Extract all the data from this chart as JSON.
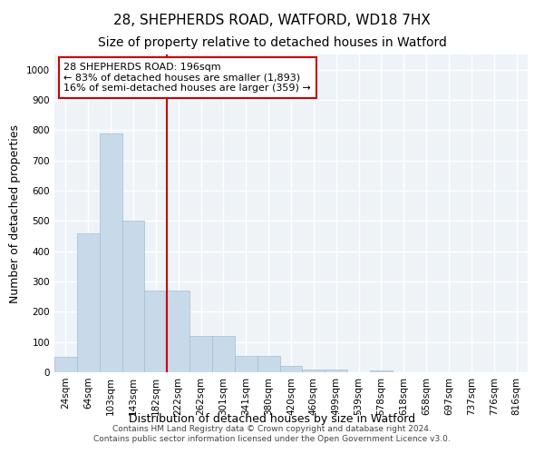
{
  "title": "28, SHEPHERDS ROAD, WATFORD, WD18 7HX",
  "subtitle": "Size of property relative to detached houses in Watford",
  "xlabel": "Distribution of detached houses by size in Watford",
  "ylabel": "Number of detached properties",
  "categories": [
    "24sqm",
    "64sqm",
    "103sqm",
    "143sqm",
    "182sqm",
    "222sqm",
    "262sqm",
    "301sqm",
    "341sqm",
    "380sqm",
    "420sqm",
    "460sqm",
    "499sqm",
    "539sqm",
    "578sqm",
    "618sqm",
    "658sqm",
    "697sqm",
    "737sqm",
    "776sqm",
    "816sqm"
  ],
  "bar_heights": [
    50,
    460,
    790,
    500,
    270,
    270,
    120,
    120,
    55,
    55,
    20,
    10,
    10,
    0,
    5,
    0,
    0,
    0,
    0,
    0,
    0
  ],
  "bar_color": "#c8daea",
  "bar_edge_color": "#a0bfd0",
  "bar_linewidth": 0.5,
  "vline_color": "#cc0000",
  "vline_x": 4.5,
  "annotation_line1": "28 SHEPHERDS ROAD: 196sqm",
  "annotation_line2": "← 83% of detached houses are smaller (1,893)",
  "annotation_line3": "16% of semi-detached houses are larger (359) →",
  "annotation_box_color": "#cc0000",
  "ylim": [
    0,
    1050
  ],
  "yticks": [
    0,
    100,
    200,
    300,
    400,
    500,
    600,
    700,
    800,
    900,
    1000
  ],
  "footer_line1": "Contains HM Land Registry data © Crown copyright and database right 2024.",
  "footer_line2": "Contains public sector information licensed under the Open Government Licence v3.0.",
  "bg_color": "#eef3f8",
  "grid_color": "#ffffff",
  "title_fontsize": 11,
  "subtitle_fontsize": 10,
  "axis_label_fontsize": 9,
  "tick_fontsize": 7.5,
  "annotation_fontsize": 8,
  "footer_fontsize": 6.5
}
